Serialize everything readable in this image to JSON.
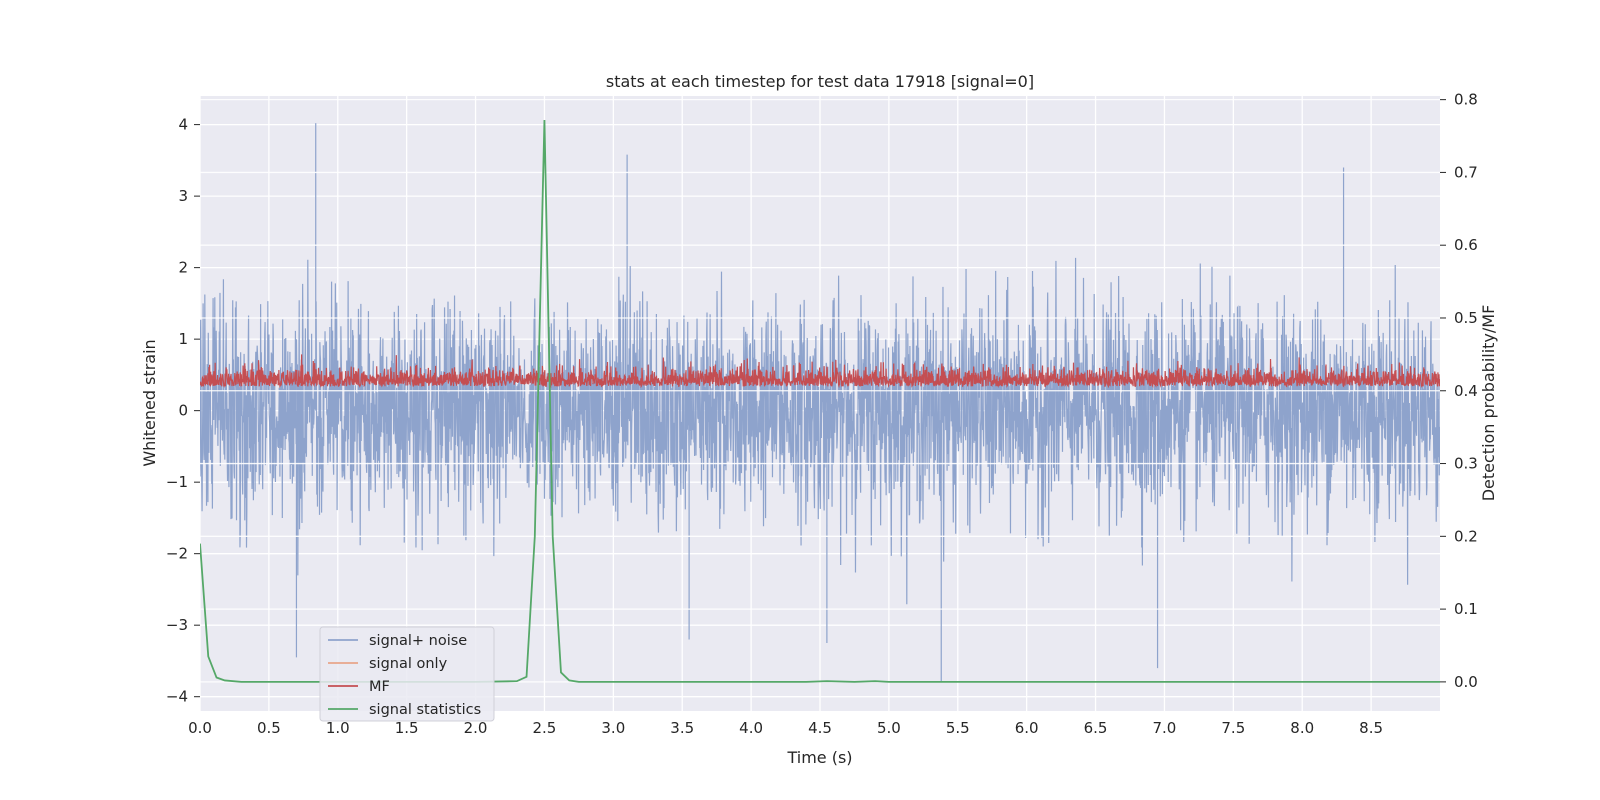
{
  "chart_data": {
    "type": "line",
    "title": "stats at each timestep for test data 17918 [signal=0]",
    "xlabel": "Time (s)",
    "ylabel_left": "Whitened strain",
    "ylabel_right": "Detection probability/MF",
    "xlim": [
      0,
      9.0
    ],
    "ylim_left": [
      -4.2,
      4.4
    ],
    "ylim_right": [
      -0.04,
      0.805
    ],
    "x_ticks": [
      "0.0",
      "0.5",
      "1.0",
      "1.5",
      "2.0",
      "2.5",
      "3.0",
      "3.5",
      "4.0",
      "4.5",
      "5.0",
      "5.5",
      "6.0",
      "6.5",
      "7.0",
      "7.5",
      "8.0",
      "8.5"
    ],
    "y_ticks_left": [
      "−4",
      "−3",
      "−2",
      "−1",
      "0",
      "1",
      "2",
      "3",
      "4"
    ],
    "y_ticks_right": [
      "0.0",
      "0.1",
      "0.2",
      "0.3",
      "0.4",
      "0.5",
      "0.6",
      "0.7",
      "0.8"
    ],
    "grid": true,
    "legend_position": "lower-left",
    "series": [
      {
        "name": "signal+ noise",
        "axis": "left",
        "color": "#8ea3cc",
        "style": "dense noise, band approx -1.7 to 1.7 with spikes up to 4.0 and down to -3.8",
        "envelope": {
          "typical_min": -1.7,
          "typical_max": 1.7,
          "max": 4.02,
          "min": -3.78
        },
        "notable_peaks": [
          {
            "x": 0.84,
            "y": 4.02
          },
          {
            "x": 3.1,
            "y": 3.58
          },
          {
            "x": 8.3,
            "y": 3.4
          },
          {
            "x": 5.38,
            "y": -3.78
          },
          {
            "x": 0.7,
            "y": -3.45
          },
          {
            "x": 6.95,
            "y": -3.6
          },
          {
            "x": 3.55,
            "y": -3.2
          },
          {
            "x": 4.55,
            "y": -3.25
          }
        ]
      },
      {
        "name": "signal only",
        "axis": "left",
        "color": "#e8a58a",
        "values": []
      },
      {
        "name": "MF",
        "axis": "right",
        "color": "#c44e52",
        "style": "dense noise band approx 0.39 to 0.43 with bursts up to 0.45",
        "envelope": {
          "typical_min": 0.39,
          "typical_max": 0.43,
          "max": 0.45,
          "min": 0.385
        }
      },
      {
        "name": "signal statistics",
        "axis": "right",
        "color": "#55a868",
        "x": [
          0.0,
          0.06,
          0.12,
          0.18,
          0.3,
          0.5,
          1.0,
          1.5,
          2.0,
          2.3,
          2.37,
          2.43,
          2.5,
          2.56,
          2.62,
          2.68,
          2.75,
          3.0,
          4.0,
          4.4,
          4.55,
          4.75,
          4.9,
          5.0,
          6.0,
          7.0,
          8.0,
          9.0
        ],
        "values": [
          0.19,
          0.035,
          0.006,
          0.002,
          0.0,
          0.0,
          0.0,
          0.0,
          0.0,
          0.001,
          0.007,
          0.2,
          0.772,
          0.2,
          0.013,
          0.002,
          0.0,
          0.0,
          0.0,
          0.0,
          0.001,
          0.0,
          0.001,
          0.0,
          0.0,
          0.0,
          0.0,
          0.0
        ]
      }
    ]
  }
}
